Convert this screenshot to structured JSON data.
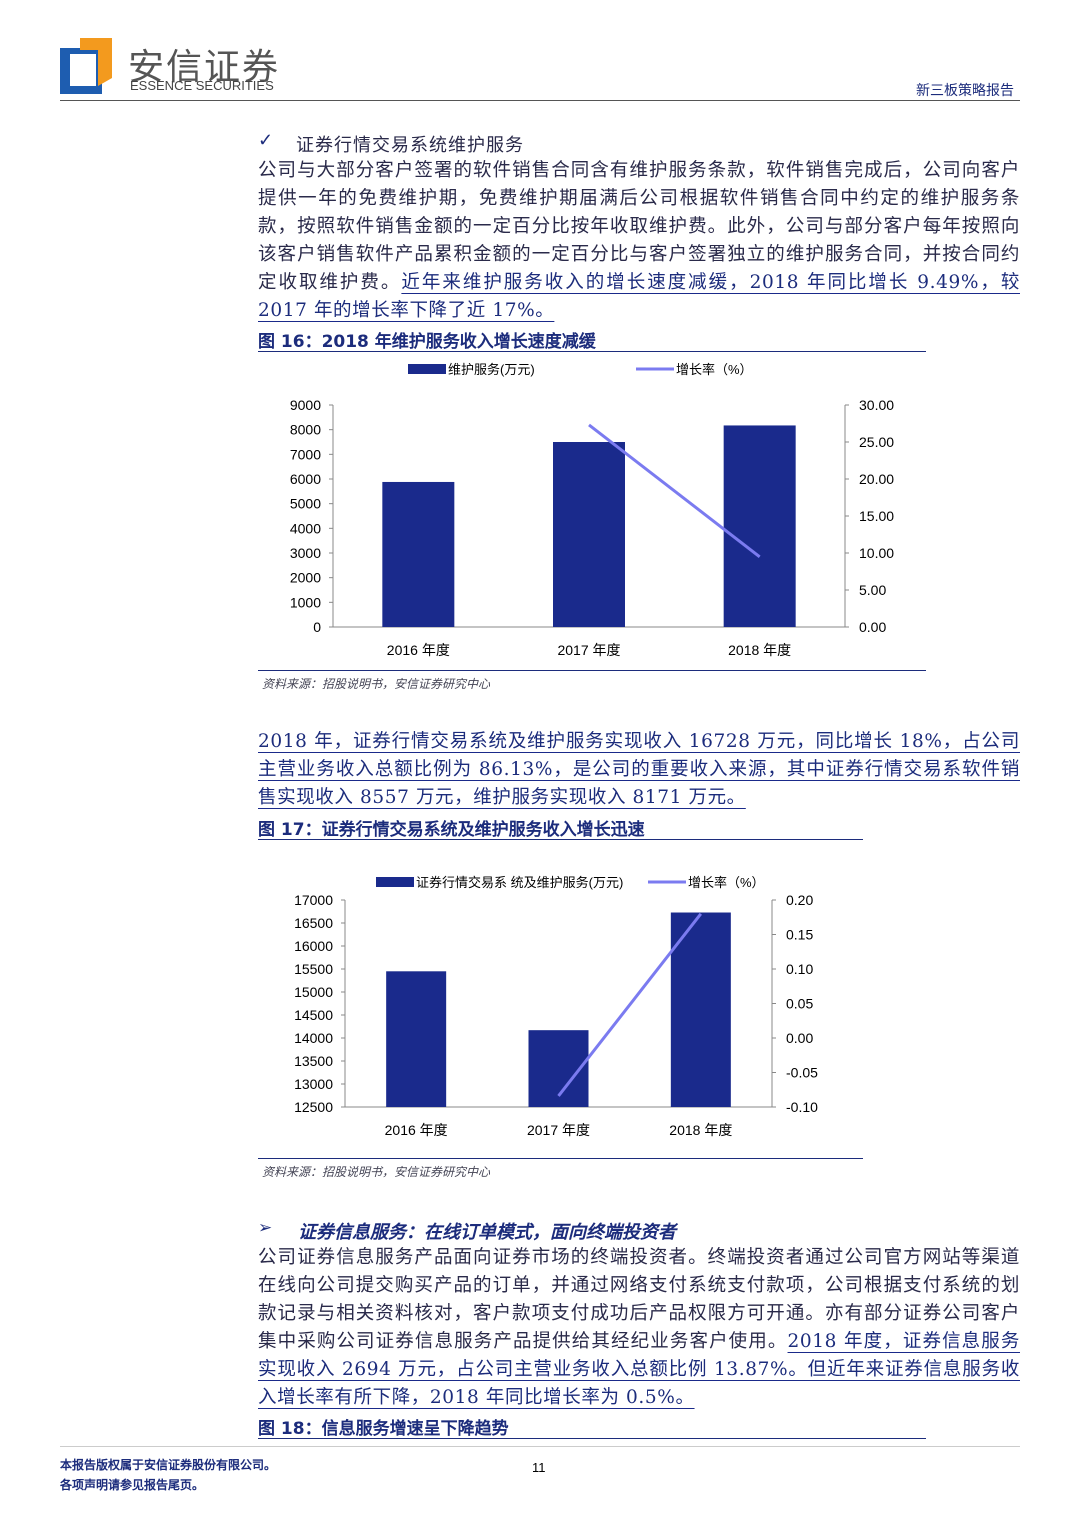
{
  "header": {
    "logo_cn": "安信证券",
    "logo_en": "ESSENCE SECURITIES",
    "report_type": "新三板策略报告"
  },
  "section1": {
    "bullet": "✓",
    "heading": "证券行情交易系统维护服务",
    "para_plain": "公司与大部分客户签署的软件销售合同含有维护服务条款，软件销售完成后，公司向客户提供一年的免费维护期，免费维护期届满后公司根据软件销售合同中约定的维护服务条款，按照软件销售金额的一定百分比按年收取维护费。此外，公司与部分客户每年按照向该客户销售软件产品累积金额的一定百分比与客户签署独立的维护服务合同，并按合同约定收取维护费。",
    "para_underlined": "近年来维护服务收入的增长速度减缓，2018 年同比增长 9.49%，较 2017 年的增长率下降了近 17%。"
  },
  "figure16": {
    "title": "图 16：2018 年维护服务收入增长速度减缓",
    "source": "资料来源：招股说明书，安信证券研究中心"
  },
  "section2": {
    "para_underlined": "2018 年，证券行情交易系统及维护服务实现收入 16728 万元，同比增长 18%，占公司主营业务收入总额比例为 86.13%，是公司的重要收入来源，其中证券行情交易系软件销售实现收入 8557 万元，维护服务实现收入 8171 万元。"
  },
  "figure17": {
    "title": "图 17：证券行情交易系统及维护服务收入增长迅速",
    "source": "资料来源：招股说明书，安信证券研究中心"
  },
  "section3": {
    "bullet": "➢",
    "heading": "证券信息服务：在线订单模式，面向终端投资者",
    "para_plain": "公司证券信息服务产品面向证券市场的终端投资者。终端投资者通过公司官方网站等渠道在线向公司提交购买产品的订单，并通过网络支付系统支付款项，公司根据支付系统的划款记录与相关资料核对，客户款项支付成功后产品权限方可开通。亦有部分证券公司客户集中采购公司证券信息服务产品提供给其经纪业务客户使用。",
    "para_underlined": "2018 年度，证券信息服务实现收入 2694 万元，占公司主营业务收入总额比例 13.87%。但近年来证券信息服务收入增长率有所下降，2018 年同比增长率为 0.5%。"
  },
  "figure18": {
    "title": "图 18：信息服务增速呈下降趋势"
  },
  "footer": {
    "line1": "本报告版权属于安信证券股份有限公司。",
    "line2": "各项声明请参见报告尾页。",
    "page": "11"
  },
  "chart_data": [
    {
      "type": "bar+line",
      "categories": [
        "2016 年度",
        "2017 年度",
        "2018 年度"
      ],
      "series": [
        {
          "name": "维护服务(万元)",
          "type": "bar",
          "axis": "left",
          "color": "#1a2a8c",
          "values": [
            5880,
            7500,
            8171
          ]
        },
        {
          "name": "增长率（%）",
          "type": "line",
          "axis": "right",
          "color": "#7b7bf0",
          "values": [
            null,
            27.3,
            9.49
          ]
        }
      ],
      "yleft": {
        "min": 0,
        "max": 9000,
        "ticks": [
          "0",
          "1000",
          "2000",
          "3000",
          "4000",
          "5000",
          "6000",
          "7000",
          "8000",
          "9000"
        ]
      },
      "yright": {
        "min": 0,
        "max": 30,
        "ticks": [
          "0.00",
          "5.00",
          "10.00",
          "15.00",
          "20.00",
          "25.00",
          "30.00"
        ]
      },
      "legend": "top",
      "grid": false
    },
    {
      "type": "bar+line",
      "categories": [
        "2016 年度",
        "2017 年度",
        "2018 年度"
      ],
      "series": [
        {
          "name": "证券行情交易系 统及维护服务(万元)",
          "type": "bar",
          "axis": "left",
          "color": "#1a2a8c",
          "values": [
            15450,
            14170,
            16728
          ]
        },
        {
          "name": "增长率（%）",
          "type": "line",
          "axis": "right",
          "color": "#7b7bf0",
          "values": [
            null,
            -0.084,
            0.18
          ]
        }
      ],
      "yleft": {
        "min": 12500,
        "max": 17000,
        "ticks": [
          "12500",
          "13000",
          "13500",
          "14000",
          "14500",
          "15000",
          "15500",
          "16000",
          "16500",
          "17000"
        ]
      },
      "yright": {
        "min": -0.1,
        "max": 0.2,
        "ticks": [
          "-0.10",
          "-0.05",
          "0.00",
          "0.05",
          "0.10",
          "0.15",
          "0.20"
        ]
      },
      "legend": "top",
      "grid": false
    }
  ]
}
